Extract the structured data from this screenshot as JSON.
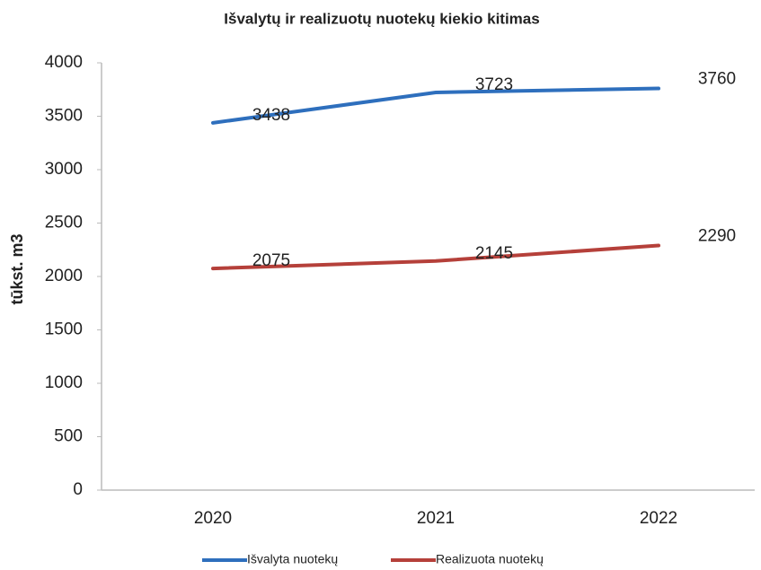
{
  "chart_data": {
    "type": "line",
    "title": "Išvalytų ir realizuotų nuotekų kiekio kitimas",
    "y_label": "tūkst. m3",
    "categories": [
      "2020",
      "2021",
      "2022"
    ],
    "series": [
      {
        "name": "Išvalyta nuotekų",
        "color": "#2e6fbd",
        "values": [
          3438,
          3723,
          3760
        ]
      },
      {
        "name": "Realizuota nuotekų",
        "color": "#b5403a",
        "values": [
          2075,
          2145,
          2290
        ]
      }
    ],
    "ylim": [
      0,
      4000
    ],
    "yticks": [
      0,
      500,
      1000,
      1500,
      2000,
      2500,
      3000,
      3500,
      4000
    ],
    "grid": false,
    "legend": "bottom"
  }
}
